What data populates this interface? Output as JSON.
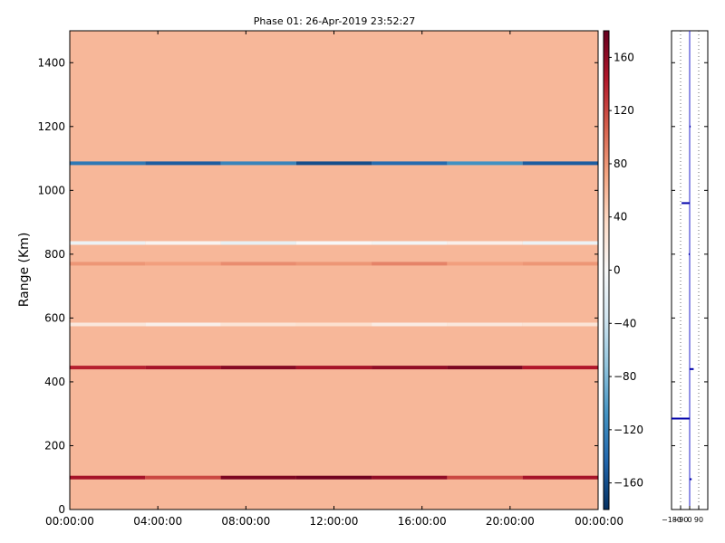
{
  "chart_data": [
    {
      "type": "heatmap",
      "title": "Phase 01: 26-Apr-2019 23:52:27",
      "ylabel": "Range (Km)",
      "xlabel": "",
      "x_ticks": [
        "00:00:00",
        "04:00:00",
        "08:00:00",
        "12:00:00",
        "16:00:00",
        "20:00:00",
        "00:00:00"
      ],
      "x_range": [
        "00:00:00",
        "24:00:00"
      ],
      "y_ticks": [
        0,
        200,
        400,
        600,
        800,
        1000,
        1200,
        1400
      ],
      "ylim": [
        0,
        1500
      ],
      "background_value": 60,
      "range_bands": [
        {
          "range_km": 100,
          "values": [
            150,
            120,
            170,
            175,
            160,
            120,
            150
          ]
        },
        {
          "range_km": 445,
          "values": [
            140,
            150,
            165,
            150,
            160,
            170,
            145
          ]
        },
        {
          "range_km": 580,
          "values": [
            20,
            10,
            25,
            30,
            15,
            20,
            25
          ]
        },
        {
          "range_km": 770,
          "values": [
            80,
            75,
            85,
            80,
            90,
            75,
            80
          ]
        },
        {
          "range_km": 835,
          "values": [
            -10,
            5,
            -15,
            0,
            -5,
            10,
            -10
          ]
        },
        {
          "range_km": 1085,
          "values": [
            -130,
            -150,
            -120,
            -160,
            -140,
            -110,
            -150
          ]
        }
      ],
      "colorbar": {
        "ticks": [
          160,
          120,
          80,
          40,
          0,
          -40,
          -80,
          -120,
          -160
        ],
        "vmin": -180,
        "vmax": 180,
        "colormap": "RdBu_r"
      }
    },
    {
      "type": "line",
      "x_ticks": [
        "-180",
        "-90",
        "0",
        "90"
      ],
      "xlim": [
        -180,
        180
      ],
      "ylim": [
        0,
        1500
      ],
      "grid": true,
      "series": [
        {
          "values": [
            {
              "y": 95,
              "x": 20
            },
            {
              "y": 285,
              "x": -180
            },
            {
              "y": 440,
              "x": 40
            },
            {
              "y": 800,
              "x": -10
            },
            {
              "y": 960,
              "x": -80
            },
            {
              "y": 1200,
              "x": 10
            }
          ]
        }
      ]
    }
  ]
}
